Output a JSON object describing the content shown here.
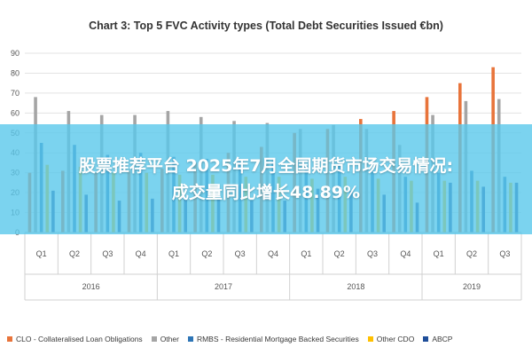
{
  "chart_data": {
    "type": "bar",
    "title": "Chart 3: Top 5 FVC Activity types (Total Debt Securities Issued €bn)",
    "xlabel": "",
    "ylabel": "",
    "ylim": [
      0,
      90
    ],
    "yticks": [
      0,
      10,
      20,
      30,
      40,
      50,
      60,
      70,
      80,
      90
    ],
    "grid": true,
    "legend_position": "bottom",
    "categories": [
      "Q1",
      "Q2",
      "Q3",
      "Q4",
      "Q1",
      "Q2",
      "Q3",
      "Q4",
      "Q1",
      "Q2",
      "Q3",
      "Q4",
      "Q1",
      "Q2",
      "Q3"
    ],
    "years": [
      {
        "label": "2016",
        "start": 0,
        "end": 3
      },
      {
        "label": "2017",
        "start": 4,
        "end": 7
      },
      {
        "label": "2018",
        "start": 8,
        "end": 11
      },
      {
        "label": "2019",
        "start": 12,
        "end": 14
      }
    ],
    "series": [
      {
        "name": "CLO - Collateralised Loan Obligations",
        "color": "#E8743B",
        "values": [
          30,
          31,
          30,
          31,
          32,
          35,
          40,
          43,
          50,
          52,
          57,
          61,
          68,
          75,
          83
        ]
      },
      {
        "name": "Other",
        "color": "#A5A5A5",
        "values": [
          68,
          61,
          59,
          59,
          61,
          58,
          56,
          55,
          52,
          54,
          52,
          44,
          59,
          66,
          67
        ]
      },
      {
        "name": "RMBS - Residential Mortgage Backed Securities",
        "color": "#2E75B6",
        "values": [
          45,
          44,
          39,
          40,
          38,
          37,
          36,
          36,
          34,
          35,
          31,
          28,
          30,
          31,
          28
        ]
      },
      {
        "name": "Other CDO",
        "color": "#FFC000",
        "values": [
          34,
          33,
          30,
          30,
          29,
          29,
          28,
          28,
          27,
          28,
          27,
          26,
          26,
          26,
          25
        ]
      },
      {
        "name": "ABCP",
        "color": "#1F4E9A",
        "values": [
          21,
          19,
          16,
          17,
          17,
          17,
          16,
          16,
          22,
          21,
          19,
          15,
          25,
          23,
          25
        ]
      }
    ]
  },
  "overlay": {
    "line1": "股票推荐平台 2025年7月全国期货市场交易情况:",
    "line2": "成交量同比增长48.89%"
  }
}
